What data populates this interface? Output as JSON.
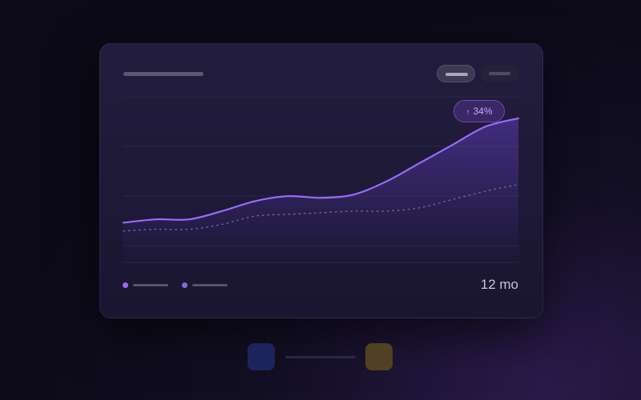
{
  "chart_data": {
    "type": "line",
    "x": [
      0,
      1,
      2,
      3,
      4,
      5,
      6,
      7,
      8,
      9,
      10,
      11,
      12
    ],
    "xlim": [
      0,
      12
    ],
    "ylim": [
      0,
      100
    ],
    "grid": true,
    "legend_placement": "bottom-left",
    "series": [
      {
        "values": [
          24,
          26,
          26,
          31,
          37,
          40,
          39,
          41,
          49,
          60,
          71,
          82,
          87
        ],
        "style": "solid",
        "color": "#9b6bff"
      },
      {
        "values": [
          19,
          20,
          20,
          23,
          28,
          29,
          30,
          31,
          31,
          33,
          38,
          43,
          47
        ],
        "style": "dotted",
        "color": "#6f6a95"
      }
    ],
    "annotation": {
      "text": "34%",
      "icon": "arrow-up-icon"
    },
    "range_label": "12 mo"
  },
  "colors": {
    "accent": "#9b6bff",
    "background": "#0c0a18",
    "card": "#1e1a37"
  }
}
